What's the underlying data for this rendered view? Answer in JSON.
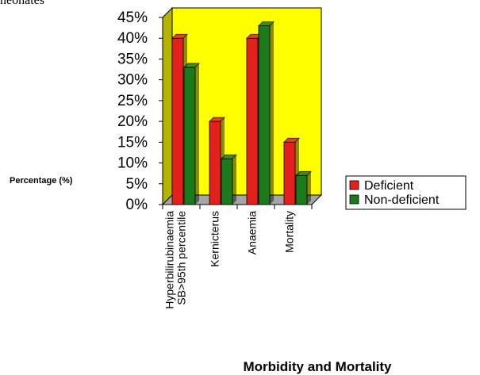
{
  "caption_fragment": "neonates",
  "chart_data": {
    "type": "bar",
    "categories": [
      [
        "Hyperbilirubinaemia",
        "SB>95th percentile"
      ],
      [
        "Kernicterus"
      ],
      [
        "Anaemia"
      ],
      [
        "Mortality"
      ]
    ],
    "series": [
      {
        "name": "Deficient",
        "values": [
          40,
          20,
          40,
          15
        ],
        "color": "#e3201b"
      },
      {
        "name": "Non-deficient",
        "values": [
          33,
          11,
          43,
          7
        ],
        "color": "#1c7a1c"
      }
    ],
    "y_ticks": [
      "0%",
      "5%",
      "10%",
      "15%",
      "20%",
      "25%",
      "30%",
      "35%",
      "40%",
      "45%"
    ],
    "ylim": [
      0,
      45
    ],
    "ylabel": "Percentage (%)",
    "xlabel": "Morbidity and Mortality",
    "plot_background": "#ffff00",
    "floor_color": "#a6a6a6",
    "legend_position": "right"
  }
}
